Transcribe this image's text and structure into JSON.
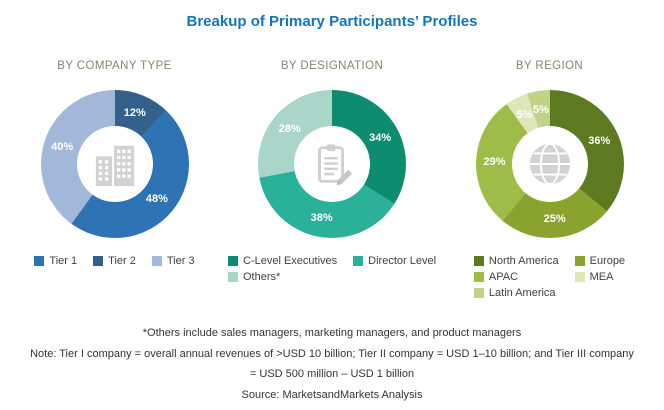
{
  "page": {
    "title": "Breakup of Primary Participants’ Profiles",
    "title_color": "#1474bc",
    "background_color": "#ffffff"
  },
  "chart_data": [
    {
      "type": "donut",
      "header": "BY COMPANY TYPE",
      "center_icon": "buildings-icon",
      "value_label_color": "#ffffff",
      "segments": [
        {
          "label": "Tier 2",
          "value": 12,
          "color": "#33618c"
        },
        {
          "label": "Tier 1",
          "value": 48,
          "color": "#2e74b5"
        },
        {
          "label": "Tier 3",
          "value": 40,
          "color": "#a2b8d8"
        }
      ],
      "legend": [
        {
          "label": "Tier 1",
          "color": "#2e74b5"
        },
        {
          "label": "Tier 2",
          "color": "#33618c"
        },
        {
          "label": "Tier 3",
          "color": "#a2b8d8"
        }
      ]
    },
    {
      "type": "donut",
      "header": "BY DESIGNATION",
      "center_icon": "clipboard-pencil-icon",
      "value_label_color": "#ffffff",
      "segments": [
        {
          "label": "C-Level Executives",
          "value": 34,
          "color": "#0d8c70"
        },
        {
          "label": "Director Level",
          "value": 38,
          "color": "#2bb09a"
        },
        {
          "label": "Others*",
          "value": 28,
          "color": "#a9d6c9"
        }
      ],
      "legend": [
        {
          "label": "C-Level Executives",
          "color": "#0d8c70"
        },
        {
          "label": "Director Level",
          "color": "#2bb09a"
        },
        {
          "label": "Others*",
          "color": "#a9d6c9"
        }
      ]
    },
    {
      "type": "donut",
      "header": "BY REGION",
      "center_icon": "globe-icon",
      "value_label_color": "#ffffff",
      "segments": [
        {
          "label": "North America",
          "value": 36,
          "color": "#5d7a20"
        },
        {
          "label": "Europe",
          "value": 25,
          "color": "#8aa32e"
        },
        {
          "label": "APAC",
          "value": 29,
          "color": "#a0bc48"
        },
        {
          "label": "MEA",
          "value": 5,
          "color": "#dde7ba"
        },
        {
          "label": "Latin America",
          "value": 5,
          "color": "#c0d389"
        }
      ],
      "legend": [
        {
          "label": "North America",
          "color": "#5d7a20"
        },
        {
          "label": "Europe",
          "color": "#8aa32e"
        },
        {
          "label": "APAC",
          "color": "#a0bc48"
        },
        {
          "label": "MEA",
          "color": "#dde7ba"
        },
        {
          "label": "Latin America",
          "color": "#c0d389"
        }
      ]
    }
  ],
  "footnotes": {
    "others": "*Others include sales managers, marketing managers, and product managers",
    "note_line1": "Note: Tier I company = overall annual revenues of >USD 10 billion; Tier II company = USD 1–10 billion; and Tier III company",
    "note_line2": "= USD 500 million – USD 1 billion",
    "source": "Source: MarketsandMarkets Analysis"
  }
}
